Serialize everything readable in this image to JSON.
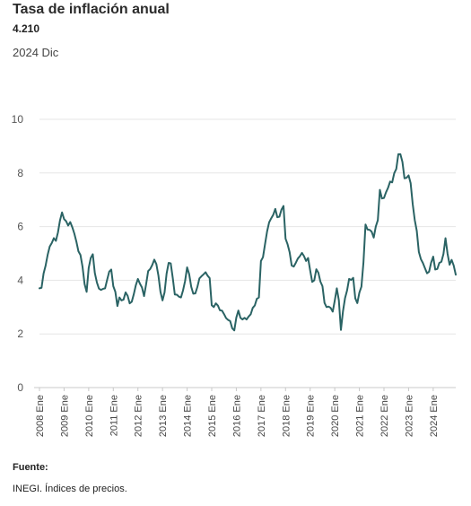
{
  "header": {
    "title": "Tasa de inflación anual",
    "value": "4.210",
    "period": "2024 Dic"
  },
  "source": {
    "label": "Fuente:",
    "text": "INEGI. Índices de precios."
  },
  "colors": {
    "line": "#2a6364",
    "grid": "#e6e6e6",
    "axis": "#c8c8c8"
  },
  "chart_data": {
    "type": "line",
    "title": "Tasa de inflación anual",
    "xlabel": "",
    "ylabel": "",
    "ylim": [
      0,
      10
    ],
    "yticks": [
      0,
      2,
      4,
      6,
      8,
      10
    ],
    "grid": true,
    "xtick_labels": [
      "2008 Ene",
      "2009 Ene",
      "2010 Ene",
      "2011 Ene",
      "2012 Ene",
      "2013 Ene",
      "2014 Ene",
      "2015 Ene",
      "2016 Ene",
      "2017 Ene",
      "2018 Ene",
      "2019 Ene",
      "2020 Ene",
      "2021 Ene",
      "2022 Ene",
      "2023 Ene",
      "2024 Ene"
    ],
    "series": [
      {
        "values": [
          3.7,
          3.72,
          4.25,
          4.55,
          4.95,
          5.26,
          5.39,
          5.57,
          5.47,
          5.78,
          6.23,
          6.53,
          6.28,
          6.2,
          6.04,
          6.17,
          5.98,
          5.74,
          5.44,
          5.08,
          4.94,
          4.5,
          3.86,
          3.57,
          4.46,
          4.83,
          4.97,
          4.27,
          3.92,
          3.69,
          3.64,
          3.68,
          3.7,
          4.02,
          4.32,
          4.4,
          3.78,
          3.57,
          3.04,
          3.36,
          3.25,
          3.28,
          3.55,
          3.42,
          3.14,
          3.2,
          3.48,
          3.82,
          4.05,
          3.87,
          3.73,
          3.41,
          3.85,
          4.34,
          4.42,
          4.57,
          4.77,
          4.6,
          4.18,
          3.57,
          3.25,
          3.55,
          4.25,
          4.65,
          4.63,
          4.09,
          3.47,
          3.46,
          3.39,
          3.36,
          3.62,
          3.97,
          4.48,
          4.23,
          3.76,
          3.5,
          3.51,
          3.75,
          4.07,
          4.15,
          4.22,
          4.3,
          4.17,
          4.08,
          3.07,
          3.0,
          3.14,
          3.06,
          2.88,
          2.87,
          2.74,
          2.59,
          2.52,
          2.48,
          2.21,
          2.13,
          2.61,
          2.87,
          2.6,
          2.54,
          2.6,
          2.54,
          2.65,
          2.73,
          2.97,
          3.06,
          3.31,
          3.36,
          4.72,
          4.86,
          5.35,
          5.82,
          6.16,
          6.31,
          6.44,
          6.66,
          6.35,
          6.37,
          6.63,
          6.77,
          5.55,
          5.34,
          5.04,
          4.55,
          4.51,
          4.65,
          4.81,
          4.9,
          5.02,
          4.9,
          4.72,
          4.83,
          4.37,
          3.94,
          4.0,
          4.41,
          4.28,
          3.95,
          3.78,
          3.16,
          3.0,
          3.02,
          2.97,
          2.83,
          3.24,
          3.7,
          3.25,
          2.15,
          2.84,
          3.33,
          3.62,
          4.05,
          4.01,
          4.09,
          3.33,
          3.15,
          3.54,
          3.76,
          4.67,
          6.08,
          5.89,
          5.88,
          5.81,
          5.59,
          6.0,
          6.24,
          7.37,
          7.05,
          7.07,
          7.28,
          7.45,
          7.68,
          7.65,
          7.99,
          8.15,
          8.7,
          8.7,
          8.41,
          7.8,
          7.82,
          7.91,
          7.62,
          6.85,
          6.25,
          5.84,
          5.06,
          4.79,
          4.64,
          4.45,
          4.26,
          4.32,
          4.66,
          4.88,
          4.4,
          4.42,
          4.65,
          4.69,
          4.98,
          5.57,
          4.99,
          4.58,
          4.76,
          4.55,
          4.21
        ]
      }
    ]
  }
}
